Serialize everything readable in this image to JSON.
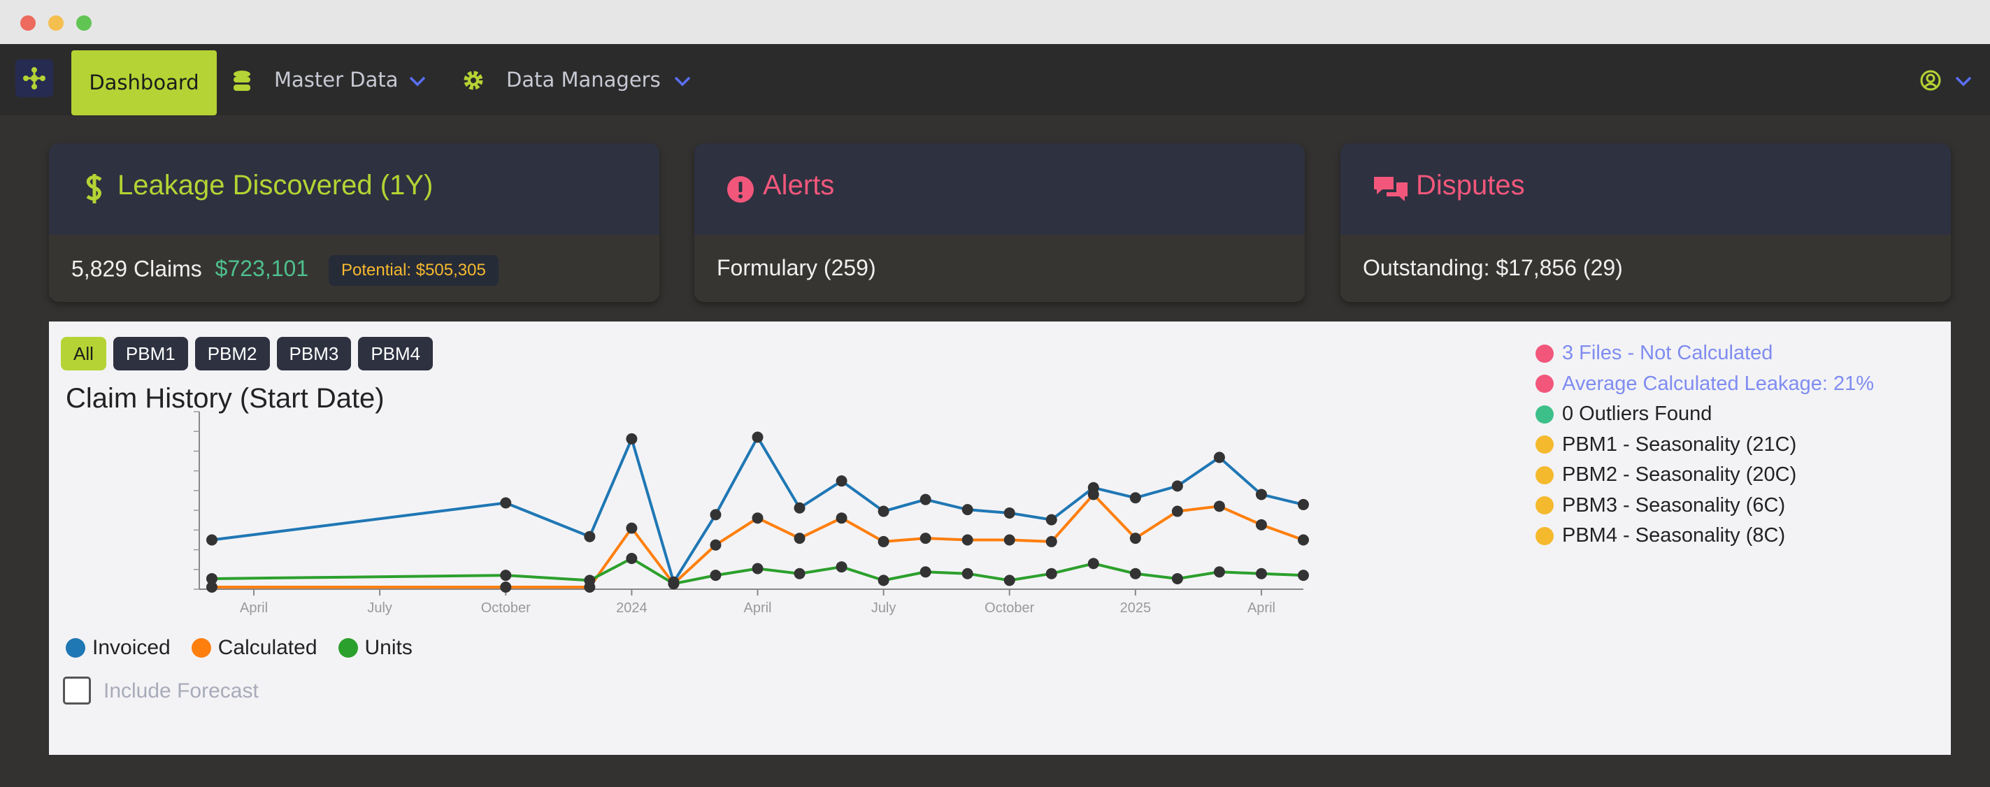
{
  "nav": {
    "items": [
      "Dashboard",
      "Master Data",
      "Data Managers"
    ]
  },
  "cards": [
    {
      "title": "Leakage Discovered (1Y)",
      "claims": "5,829 Claims",
      "amount": "$723,101",
      "potential": "Potential: $505,305"
    },
    {
      "title": "Alerts",
      "body": "Formulary (259)"
    },
    {
      "title": "Disputes",
      "body": "Outstanding: $17,856 (29)"
    }
  ],
  "filters": [
    "All",
    "PBM1",
    "PBM2",
    "PBM3",
    "PBM4"
  ],
  "notices": [
    {
      "text": "3 Files - Not Calculated",
      "status": "error"
    },
    {
      "text": "Average Calculated Leakage: 21%",
      "status": "error"
    },
    {
      "text": "0 Outliers Found",
      "status": "ok"
    },
    {
      "text": "PBM1 - Seasonality (21C)",
      "status": "info"
    },
    {
      "text": "PBM2 - Seasonality (20C)",
      "status": "info"
    },
    {
      "text": "PBM3 - Seasonality (6C)",
      "status": "info"
    },
    {
      "text": "PBM4 - Seasonality (8C)",
      "status": "info"
    }
  ],
  "checkbox": "Include Forecast",
  "chart_data": {
    "type": "line",
    "title": "Claim History (Start Date)",
    "x": [
      "2023-03",
      "2023-10",
      "2023-12",
      "2024-01",
      "2024-02",
      "2024-03",
      "2024-04",
      "2024-05",
      "2024-06",
      "2024-07",
      "2024-08",
      "2024-09",
      "2024-10",
      "2024-11",
      "2024-12",
      "2025-01",
      "2025-02",
      "2025-03",
      "2025-04",
      "2025-05"
    ],
    "xlim": [
      "2023-03",
      "2025-05"
    ],
    "xticks": [
      {
        "value": "2023-04",
        "label": "April"
      },
      {
        "value": "2023-07",
        "label": "July"
      },
      {
        "value": "2023-10",
        "label": "October"
      },
      {
        "value": "2024-01",
        "label": "2024"
      },
      {
        "value": "2024-04",
        "label": "April"
      },
      {
        "value": "2024-07",
        "label": "July"
      },
      {
        "value": "2024-10",
        "label": "October"
      },
      {
        "value": "2025-01",
        "label": "2025"
      },
      {
        "value": "2025-04",
        "label": "April"
      }
    ],
    "ylim": [
      0,
      100
    ],
    "series": [
      {
        "name": "Invoiced",
        "color": "#1f77b4",
        "values": [
          28,
          50,
          30,
          88,
          3,
          43,
          89,
          47,
          63,
          45,
          52,
          46,
          44,
          40,
          59,
          53,
          60,
          77,
          55,
          49
        ]
      },
      {
        "name": "Calculated",
        "color": "#ff7f0e",
        "values": [
          0,
          0,
          0,
          35,
          2,
          25,
          41,
          29,
          41,
          27,
          29,
          28,
          28,
          27,
          55,
          29,
          45,
          48,
          37,
          28
        ]
      },
      {
        "name": "Units",
        "color": "#2ca02c",
        "values": [
          5,
          7,
          4,
          17,
          2,
          7,
          11,
          8,
          12,
          4,
          9,
          8,
          4,
          8,
          14,
          8,
          5,
          9,
          8,
          7
        ]
      }
    ]
  }
}
